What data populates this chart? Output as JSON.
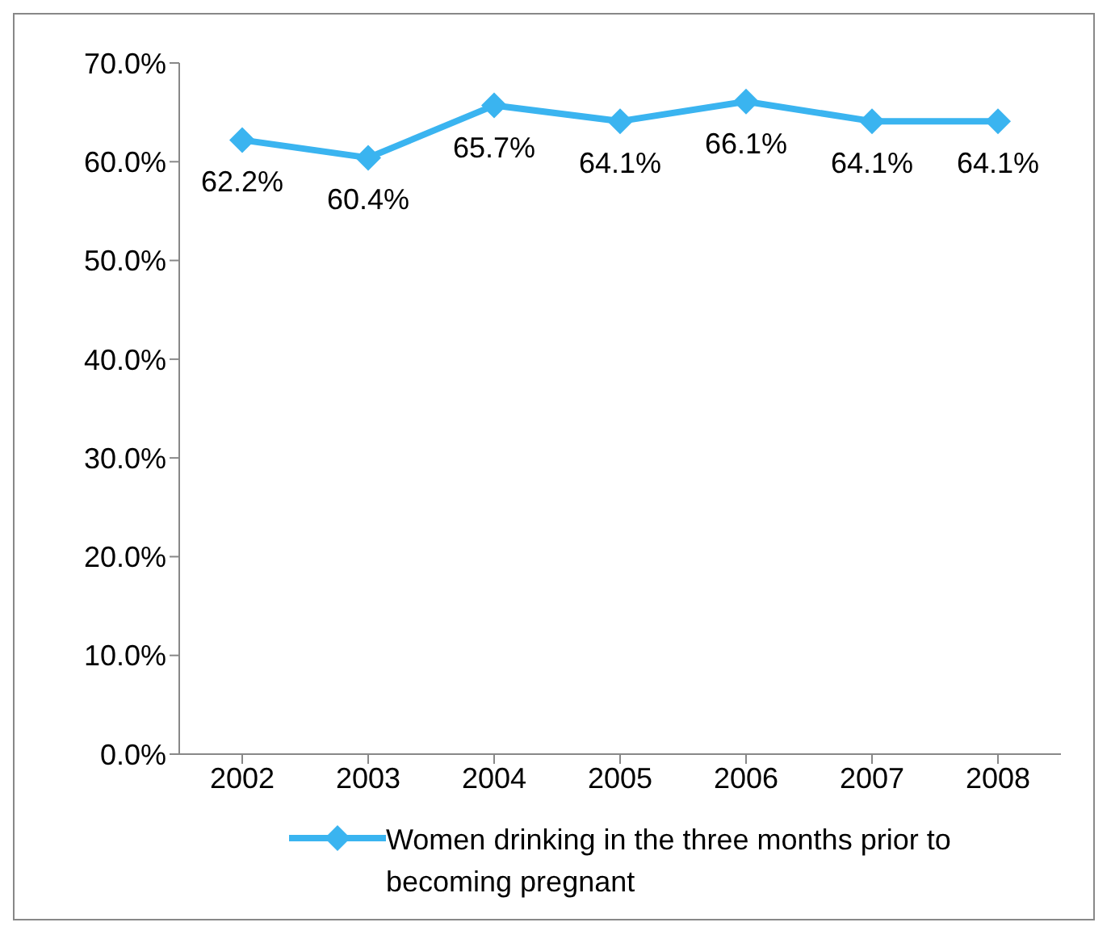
{
  "chart_data": {
    "type": "line",
    "categories": [
      "2002",
      "2003",
      "2004",
      "2005",
      "2006",
      "2007",
      "2008"
    ],
    "series": [
      {
        "name": "Women drinking in the three months prior to becoming pregnant",
        "color": "#3ab4f0",
        "values": [
          62.2,
          60.4,
          65.7,
          64.1,
          66.1,
          64.1,
          64.1
        ],
        "value_labels": [
          "62.2%",
          "60.4%",
          "65.7%",
          "64.1%",
          "66.1%",
          "64.1%",
          "64.1%"
        ]
      }
    ],
    "ylim": [
      0,
      70
    ],
    "yticks": [
      {
        "value": 0,
        "label": "0.0%"
      },
      {
        "value": 10,
        "label": "10.0%"
      },
      {
        "value": 20,
        "label": "20.0%"
      },
      {
        "value": 30,
        "label": "30.0%"
      },
      {
        "value": 40,
        "label": "40.0%"
      },
      {
        "value": 50,
        "label": "50.0%"
      },
      {
        "value": 60,
        "label": "60.0%"
      },
      {
        "value": 70,
        "label": "70.0%"
      }
    ],
    "grid": false,
    "legend": "bottom",
    "marker": "diamond",
    "line_style": "solid"
  }
}
